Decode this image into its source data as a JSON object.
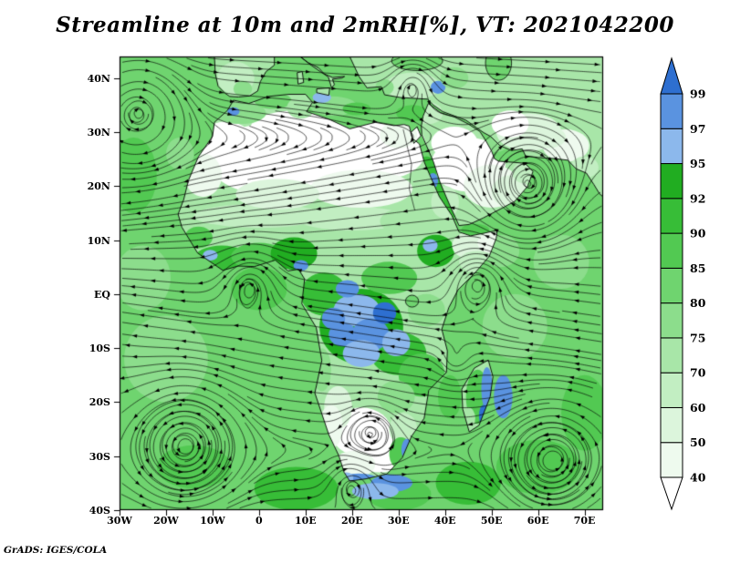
{
  "title": "Streamline at 10m and 2mRH[%], VT: 2021042200",
  "credit": "GrADS: IGES/COLA",
  "chart_data": {
    "type": "heatmap",
    "title": "Streamline at 10m and 2mRH[%], VT: 2021042200",
    "variable": "2m relative humidity [%] (shaded)",
    "overlay": "10m wind streamlines (black, arrowed)",
    "valid_time": "2021042200",
    "region": "Africa, Arabia and surrounding oceans",
    "x_axis": {
      "ticks": [
        "30W",
        "20W",
        "10W",
        "0",
        "10E",
        "20E",
        "30E",
        "40E",
        "50E",
        "60E",
        "70E"
      ],
      "values": [
        -30,
        -20,
        -10,
        0,
        10,
        20,
        30,
        40,
        50,
        60,
        70
      ],
      "range_deg": [
        -30,
        74
      ]
    },
    "y_axis": {
      "ticks": [
        "40N",
        "30N",
        "20N",
        "10N",
        "EQ",
        "10S",
        "20S",
        "30S",
        "40S"
      ],
      "values": [
        40,
        30,
        20,
        10,
        0,
        -10,
        -20,
        -30,
        -40
      ],
      "range_deg": [
        -40,
        44
      ]
    },
    "colorbar": {
      "levels": [
        40,
        50,
        60,
        70,
        75,
        80,
        85,
        90,
        92,
        95,
        97,
        99
      ],
      "colors_low_to_high": [
        "#ffffff",
        "#eefaee",
        "#dcf5dc",
        "#c2eec2",
        "#a8e6a8",
        "#8cdd8c",
        "#6fd46f",
        "#52c952",
        "#37bd37",
        "#21ad21",
        "#8cb8ec",
        "#5a93e0",
        "#2e6fd0"
      ],
      "unit": "%"
    },
    "streamline_color": "#000000",
    "grid": false,
    "legend_position": "right-colorbar"
  }
}
